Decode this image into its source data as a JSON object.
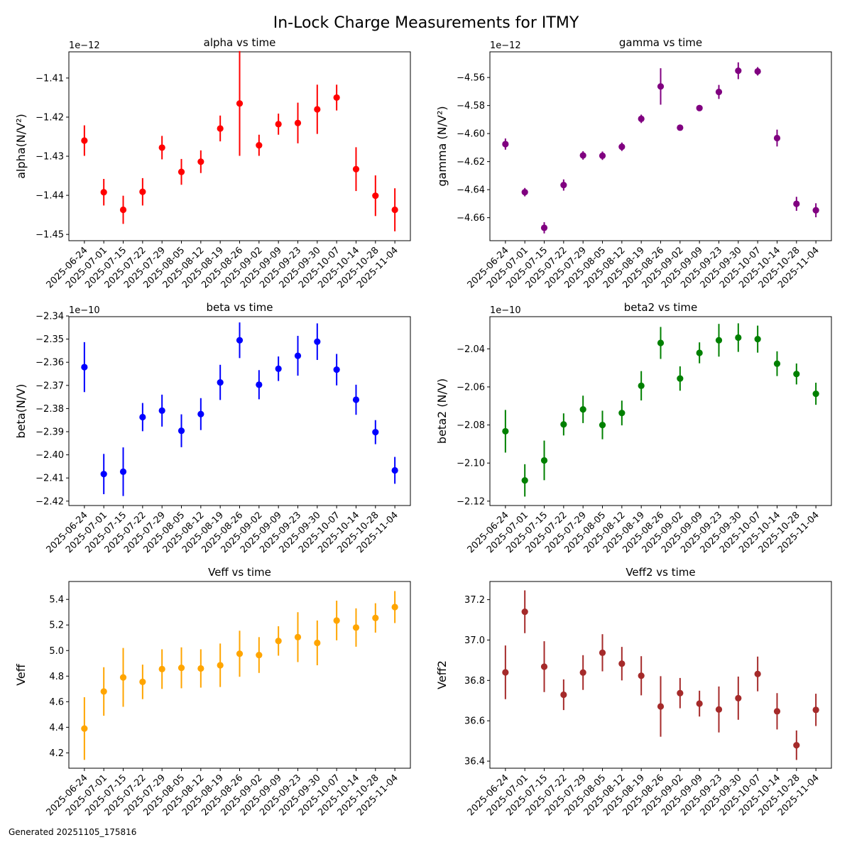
{
  "figure": {
    "title": "In-Lock Charge Measurements for ITMY",
    "footer": "Generated 20251105_175816"
  },
  "chart_data": [
    {
      "type": "scatter",
      "title": "alpha vs time",
      "ylabel": "alpha(N/V²)",
      "offset_label": "1e−12",
      "color": "#ff0000",
      "grid": false,
      "categories": [
        "2025-06-24",
        "2025-07-01",
        "2025-07-15",
        "2025-07-22",
        "2025-07-29",
        "2025-08-05",
        "2025-08-12",
        "2025-08-19",
        "2025-08-26",
        "2025-09-02",
        "2025-09-09",
        "2025-09-23",
        "2025-09-30",
        "2025-10-07",
        "2025-10-14",
        "2025-10-28",
        "2025-11-04"
      ],
      "values": [
        -1.426,
        -1.4392,
        -1.4437,
        -1.4391,
        -1.4278,
        -1.434,
        -1.4314,
        -1.4229,
        -1.4165,
        -1.4272,
        -1.4218,
        -1.4215,
        -1.418,
        -1.415,
        -1.4333,
        -1.4401,
        -1.4437
      ],
      "errors": [
        0.0039,
        0.0034,
        0.0036,
        0.0035,
        0.003,
        0.0033,
        0.0029,
        0.0033,
        0.0134,
        0.0027,
        0.0027,
        0.0052,
        0.0063,
        0.0033,
        0.0056,
        0.0052,
        0.0055
      ],
      "ylim": [
        -1.4516,
        -1.4033
      ],
      "yticks": [
        -1.45,
        -1.44,
        -1.43,
        -1.42,
        -1.41
      ],
      "ytick_labels": [
        "−1.45",
        "−1.44",
        "−1.43",
        "−1.42",
        "−1.41"
      ]
    },
    {
      "type": "scatter",
      "title": "gamma vs time",
      "ylabel": "gamma (N/V²)",
      "offset_label": "1e−12",
      "color": "#800080",
      "grid": false,
      "categories": [
        "2025-06-24",
        "2025-07-01",
        "2025-07-15",
        "2025-07-22",
        "2025-07-29",
        "2025-08-05",
        "2025-08-12",
        "2025-08-19",
        "2025-08-26",
        "2025-09-02",
        "2025-09-09",
        "2025-09-23",
        "2025-09-30",
        "2025-10-07",
        "2025-10-14",
        "2025-10-28",
        "2025-11-04"
      ],
      "values": [
        -4.6075,
        -4.6418,
        -4.6672,
        -4.6367,
        -4.6156,
        -4.6158,
        -4.6094,
        -4.5895,
        -4.5664,
        -4.5958,
        -4.5818,
        -4.5703,
        -4.5552,
        -4.5556,
        -4.6032,
        -4.6501,
        -4.6547
      ],
      "errors": [
        0.004,
        0.003,
        0.004,
        0.004,
        0.003,
        0.003,
        0.003,
        0.003,
        0.013,
        0.002,
        0.002,
        0.005,
        0.006,
        0.003,
        0.006,
        0.005,
        0.005
      ],
      "ylim": [
        -4.6764,
        -4.5417
      ],
      "yticks": [
        -4.66,
        -4.64,
        -4.62,
        -4.6,
        -4.58,
        -4.56
      ],
      "ytick_labels": [
        "−4.66",
        "−4.64",
        "−4.62",
        "−4.60",
        "−4.58",
        "−4.56"
      ]
    },
    {
      "type": "scatter",
      "title": "beta vs time",
      "ylabel": "beta(N/V)",
      "offset_label": "1e−10",
      "color": "#0000ff",
      "grid": false,
      "categories": [
        "2025-06-24",
        "2025-07-01",
        "2025-07-15",
        "2025-07-22",
        "2025-07-29",
        "2025-08-05",
        "2025-08-12",
        "2025-08-19",
        "2025-08-26",
        "2025-09-02",
        "2025-09-09",
        "2025-09-23",
        "2025-09-30",
        "2025-10-07",
        "2025-10-14",
        "2025-10-28",
        "2025-11-04"
      ],
      "values": [
        -2.3621,
        -2.4083,
        -2.4073,
        -2.3837,
        -2.3809,
        -2.3896,
        -2.3824,
        -2.3687,
        -2.3505,
        -2.3697,
        -2.3628,
        -2.3572,
        -2.3511,
        -2.3632,
        -2.3762,
        -2.3902,
        -2.4067
      ],
      "errors": [
        0.0108,
        0.0087,
        0.0105,
        0.0061,
        0.0069,
        0.0071,
        0.0069,
        0.0076,
        0.0077,
        0.0063,
        0.0053,
        0.0086,
        0.0079,
        0.0068,
        0.0065,
        0.0052,
        0.0058
      ],
      "ylim": [
        -2.4219,
        -2.3403
      ],
      "yticks": [
        -2.42,
        -2.41,
        -2.4,
        -2.39,
        -2.38,
        -2.37,
        -2.36,
        -2.35,
        -2.34
      ],
      "ytick_labels": [
        "−2.42",
        "−2.41",
        "−2.40",
        "−2.39",
        "−2.38",
        "−2.37",
        "−2.36",
        "−2.35",
        "−2.34"
      ]
    },
    {
      "type": "scatter",
      "title": "beta2 vs time",
      "ylabel": "beta2 (N/V)",
      "offset_label": "1e−10",
      "color": "#008000",
      "grid": false,
      "categories": [
        "2025-06-24",
        "2025-07-01",
        "2025-07-15",
        "2025-07-22",
        "2025-07-29",
        "2025-08-05",
        "2025-08-12",
        "2025-08-19",
        "2025-08-26",
        "2025-09-02",
        "2025-09-09",
        "2025-09-23",
        "2025-09-30",
        "2025-10-07",
        "2025-10-14",
        "2025-10-28",
        "2025-11-04"
      ],
      "values": [
        -2.0833,
        -2.1091,
        -2.0986,
        -2.0797,
        -2.0718,
        -2.08,
        -2.0737,
        -2.0594,
        -2.0369,
        -2.0556,
        -2.0421,
        -2.0355,
        -2.0341,
        -2.0349,
        -2.0478,
        -2.0532,
        -2.0636
      ],
      "errors": [
        0.0112,
        0.0085,
        0.0104,
        0.0058,
        0.0072,
        0.0075,
        0.0065,
        0.0077,
        0.0084,
        0.0064,
        0.0055,
        0.0086,
        0.0075,
        0.0071,
        0.0065,
        0.0055,
        0.0058
      ],
      "ylim": [
        -2.1223,
        -2.0231
      ],
      "yticks": [
        -2.12,
        -2.1,
        -2.08,
        -2.06,
        -2.04
      ],
      "ytick_labels": [
        "−2.12",
        "−2.10",
        "−2.08",
        "−2.06",
        "−2.04"
      ]
    },
    {
      "type": "scatter",
      "title": "Veff vs time",
      "ylabel": "Veff",
      "offset_label": "",
      "color": "#ffa500",
      "grid": false,
      "categories": [
        "2025-06-24",
        "2025-07-01",
        "2025-07-15",
        "2025-07-22",
        "2025-07-29",
        "2025-08-05",
        "2025-08-12",
        "2025-08-19",
        "2025-08-26",
        "2025-09-02",
        "2025-09-09",
        "2025-09-23",
        "2025-09-30",
        "2025-10-07",
        "2025-10-14",
        "2025-10-28",
        "2025-11-04"
      ],
      "values": [
        4.39,
        4.68,
        4.79,
        4.755,
        4.855,
        4.865,
        4.86,
        4.885,
        4.975,
        4.965,
        5.075,
        5.105,
        5.06,
        5.235,
        5.18,
        5.255,
        5.34
      ],
      "errors": [
        0.245,
        0.19,
        0.23,
        0.135,
        0.155,
        0.16,
        0.15,
        0.17,
        0.18,
        0.14,
        0.115,
        0.195,
        0.175,
        0.155,
        0.15,
        0.115,
        0.125
      ],
      "ylim": [
        4.08,
        5.54
      ],
      "yticks": [
        4.2,
        4.4,
        4.6,
        4.8,
        5.0,
        5.2,
        5.4
      ],
      "ytick_labels": [
        "4.2",
        "4.4",
        "4.6",
        "4.8",
        "5.0",
        "5.2",
        "5.4"
      ]
    },
    {
      "type": "scatter",
      "title": "Veff2 vs time",
      "ylabel": "Veff2",
      "offset_label": "",
      "color": "#a52a2a",
      "grid": false,
      "categories": [
        "2025-06-24",
        "2025-07-01",
        "2025-07-15",
        "2025-07-22",
        "2025-07-29",
        "2025-08-05",
        "2025-08-12",
        "2025-08-19",
        "2025-08-26",
        "2025-09-02",
        "2025-09-09",
        "2025-09-23",
        "2025-09-30",
        "2025-10-07",
        "2025-10-14",
        "2025-10-28",
        "2025-11-04"
      ],
      "values": [
        36.84,
        37.14,
        36.868,
        36.729,
        36.839,
        36.937,
        36.883,
        36.823,
        36.671,
        36.737,
        36.685,
        36.656,
        36.712,
        36.832,
        36.647,
        36.479,
        36.654
      ],
      "errors": [
        0.133,
        0.106,
        0.126,
        0.076,
        0.086,
        0.092,
        0.083,
        0.097,
        0.15,
        0.075,
        0.064,
        0.114,
        0.107,
        0.086,
        0.09,
        0.073,
        0.08
      ],
      "ylim": [
        36.365,
        37.29
      ],
      "yticks": [
        36.4,
        36.6,
        36.8,
        37.0,
        37.2
      ],
      "ytick_labels": [
        "36.4",
        "36.6",
        "36.8",
        "37.0",
        "37.2"
      ]
    }
  ]
}
